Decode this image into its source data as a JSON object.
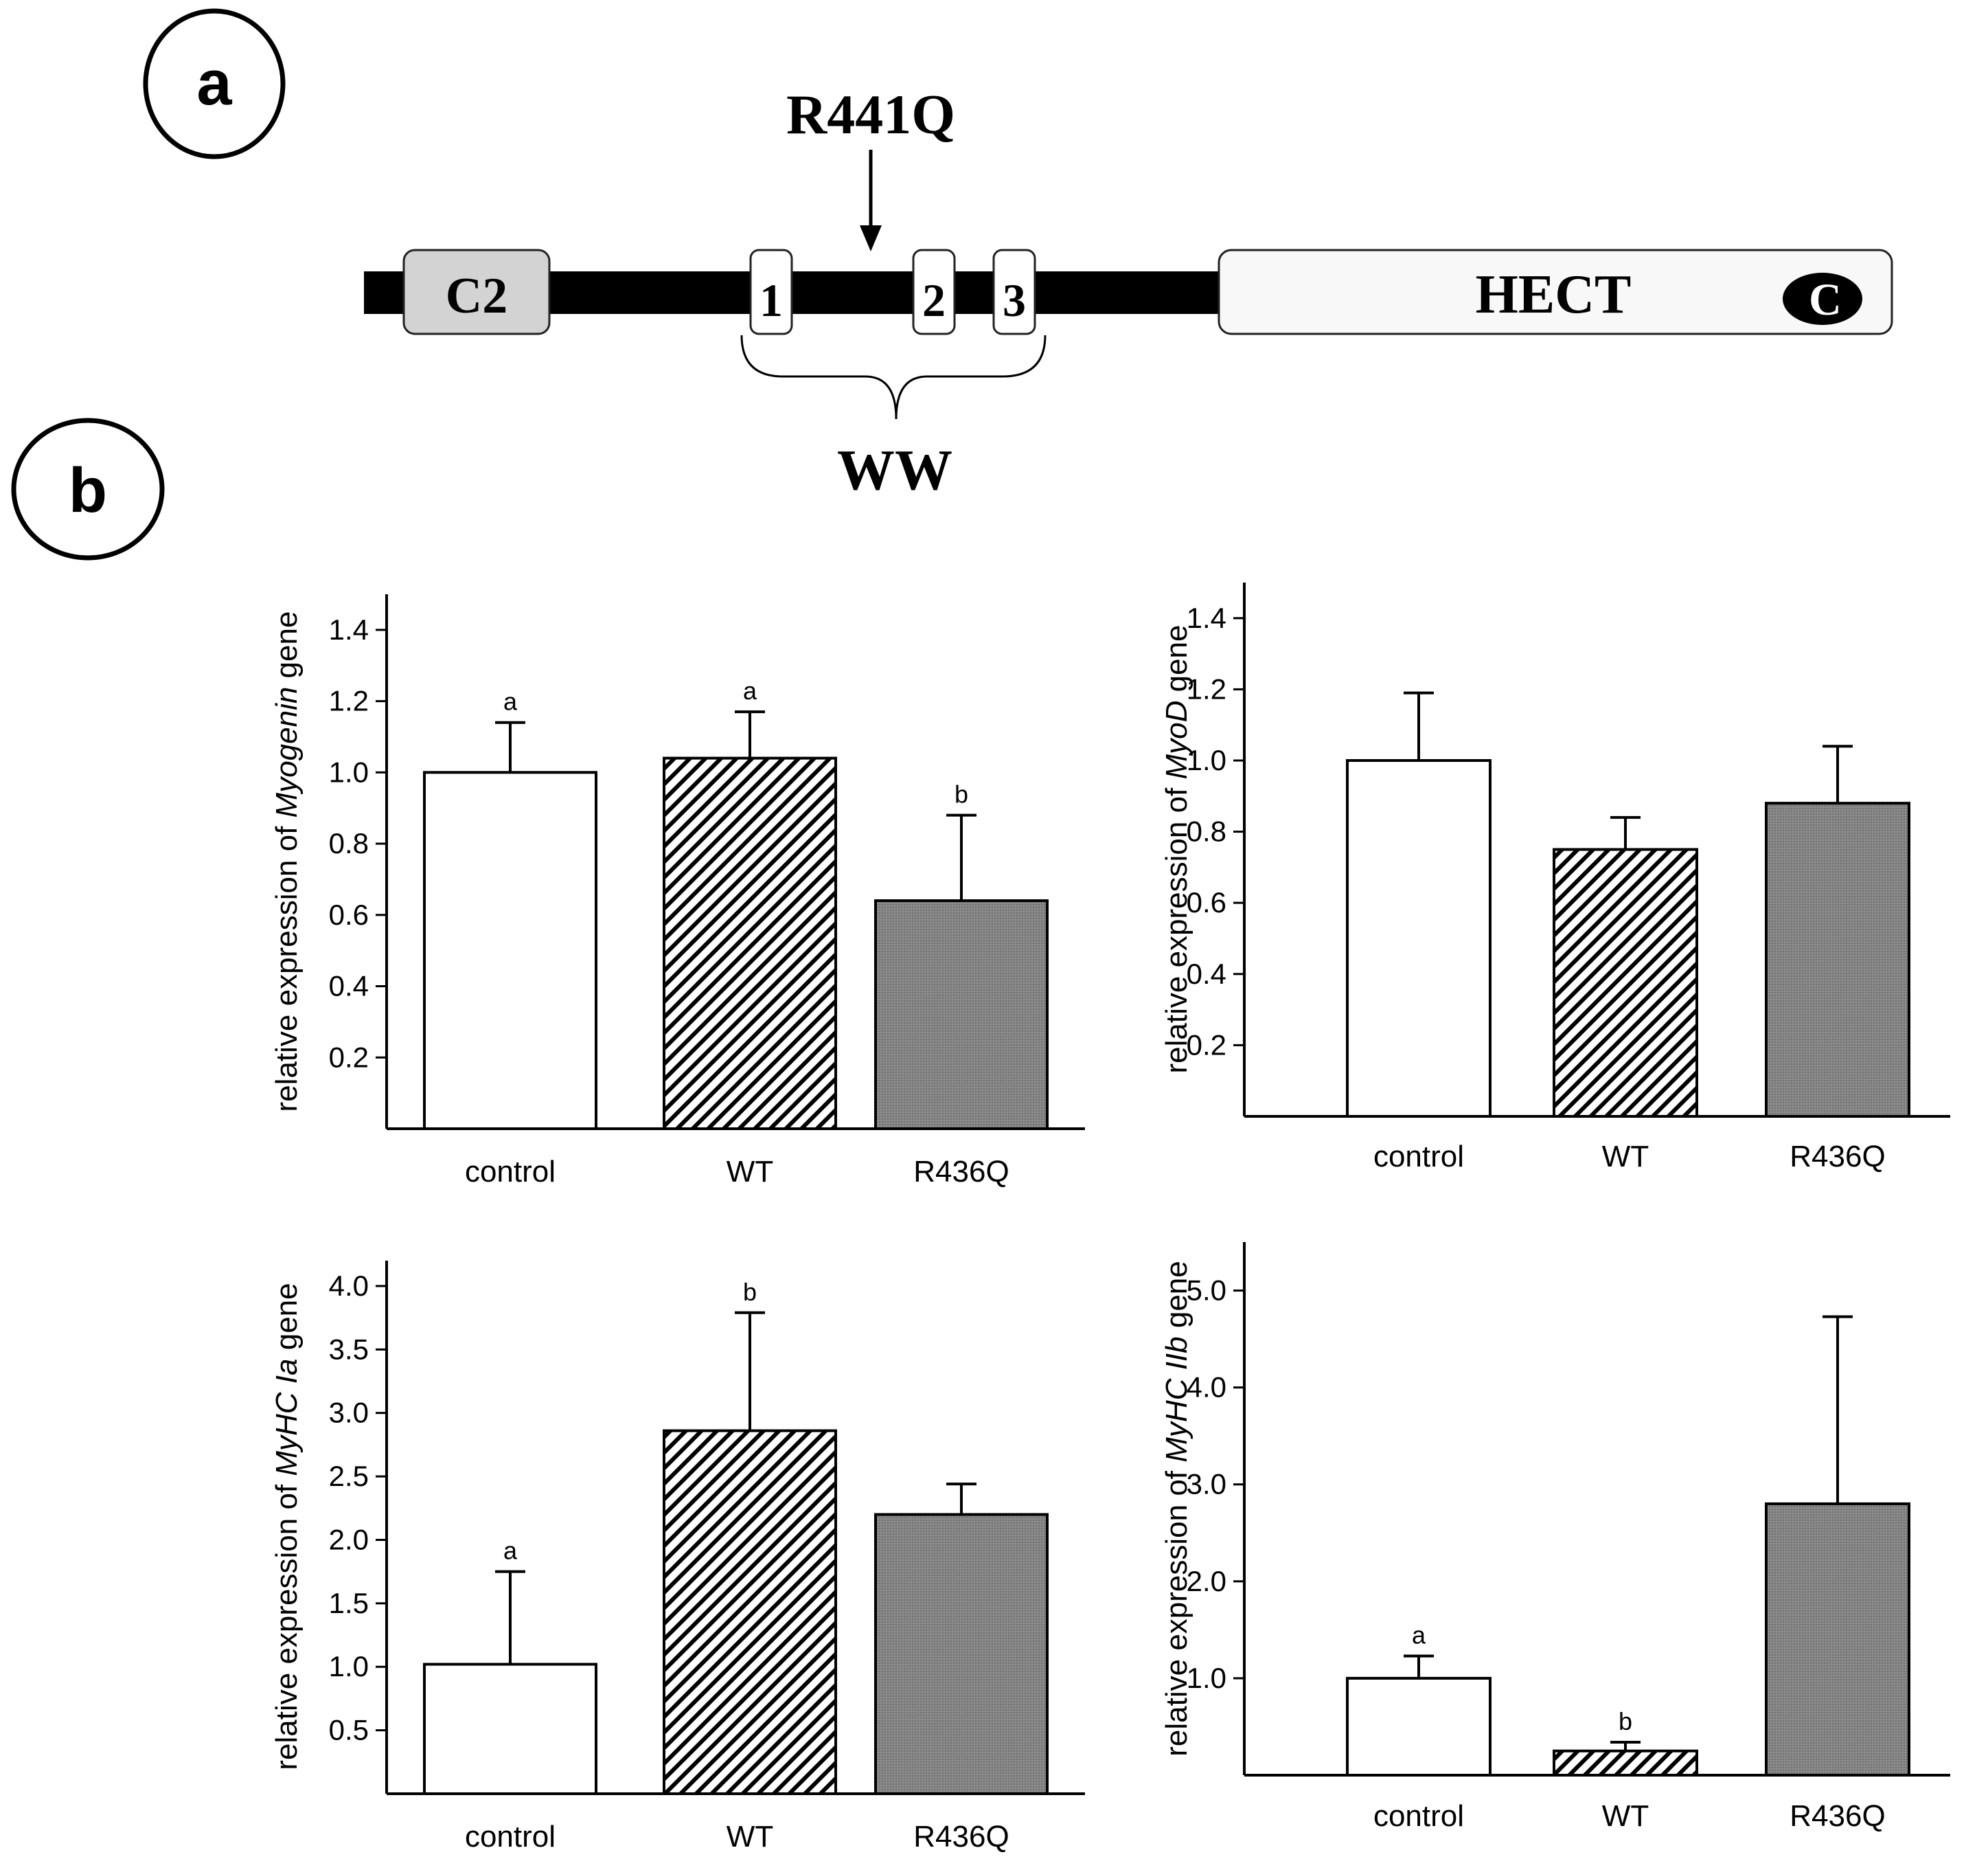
{
  "panel_a": {
    "label": "a",
    "mutation": "R441Q",
    "domains": {
      "c2": "C2",
      "ww1": "1",
      "ww2": "2",
      "ww3": "3",
      "hect": "HECT",
      "catalytic": "C"
    },
    "ww_label": "WW"
  },
  "panel_b": {
    "label": "b"
  },
  "colors": {
    "control": "#ffffff",
    "wt": "hatched",
    "r436q": "#808080",
    "axis": "#000000"
  },
  "chart_data": [
    {
      "type": "bar",
      "ylabel_prefix": "relative expression of ",
      "gene": "Myogenin",
      "ylabel_suffix": " gene",
      "categories": [
        "control",
        "WT",
        "R436Q"
      ],
      "values": [
        1.0,
        1.04,
        0.64
      ],
      "errors": [
        0.14,
        0.13,
        0.24
      ],
      "sig_letters": [
        "a",
        "a",
        "b"
      ],
      "yticks": [
        "0.2",
        "0.4",
        "0.6",
        "0.8",
        "1.0",
        "1.2",
        "1.4"
      ],
      "ylim": [
        0,
        1.5
      ]
    },
    {
      "type": "bar",
      "ylabel_prefix": "relative expression of ",
      "gene": "MyoD",
      "ylabel_suffix": " gene",
      "categories": [
        "control",
        "WT",
        "R436Q"
      ],
      "values": [
        1.0,
        0.75,
        0.88
      ],
      "errors": [
        0.19,
        0.09,
        0.16
      ],
      "sig_letters": [
        "",
        "",
        ""
      ],
      "yticks": [
        "0.2",
        "0.4",
        "0.6",
        "0.8",
        "1.0",
        "1.2",
        "1.4"
      ],
      "ylim": [
        0,
        1.5
      ]
    },
    {
      "type": "bar",
      "ylabel_prefix": "relative expression of ",
      "gene": "MyHC Ia",
      "ylabel_suffix": " gene",
      "categories": [
        "control",
        "WT",
        "R436Q"
      ],
      "values": [
        1.02,
        2.86,
        2.2
      ],
      "errors": [
        0.73,
        0.93,
        0.24
      ],
      "sig_letters": [
        "a",
        "b",
        ""
      ],
      "yticks": [
        "0.5",
        "1.0",
        "1.5",
        "2.0",
        "2.5",
        "3.0",
        "3.5",
        "4.0"
      ],
      "ylim": [
        0,
        4.2
      ]
    },
    {
      "type": "bar",
      "ylabel_prefix": "relative expression of ",
      "gene": "MyHC IIb",
      "ylabel_suffix": " gene",
      "categories": [
        "control",
        "WT",
        "R436Q"
      ],
      "values": [
        1.0,
        0.25,
        2.8
      ],
      "errors": [
        0.23,
        0.09,
        1.93
      ],
      "sig_letters": [
        "a",
        "b",
        ""
      ],
      "yticks": [
        "1.0",
        "2.0",
        "3.0",
        "4.0",
        "5.0"
      ],
      "ylim": [
        0,
        5.5
      ]
    }
  ]
}
